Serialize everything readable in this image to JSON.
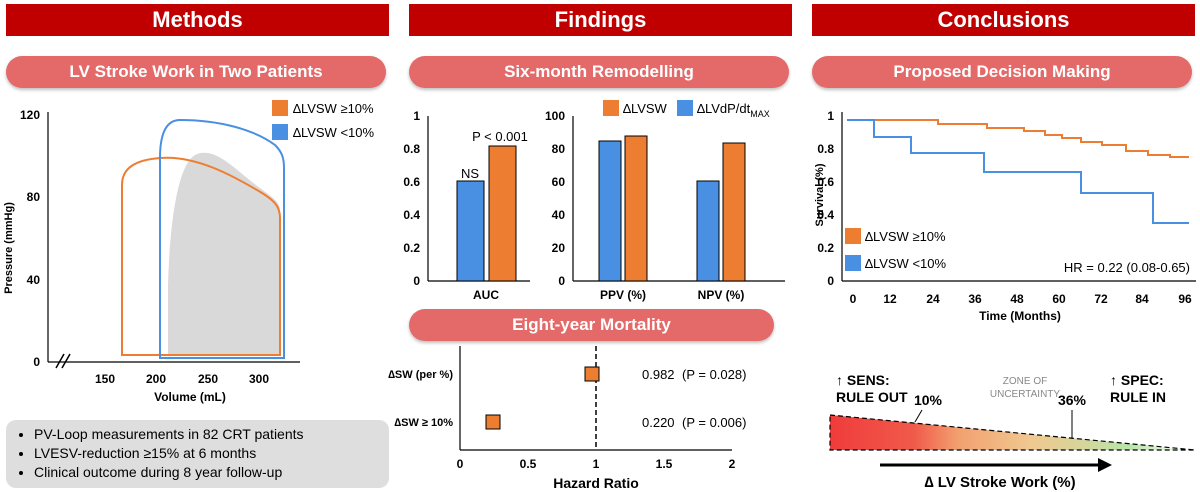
{
  "headers": {
    "methods": "Methods",
    "findings": "Findings",
    "conclusions": "Conclusions"
  },
  "pills": {
    "stroke_work": "LV Stroke Work in Two Patients",
    "remodelling": "Six-month Remodelling",
    "mortality": "Eight-year Mortality",
    "decision": "Proposed Decision Making"
  },
  "legend": {
    "high": "∆LVSW ≥10%",
    "low": "∆LVSW <10%",
    "lvsw": "∆LVSW",
    "dpdt_main": "∆LVdP/dt",
    "dpdt_sub": "MAX"
  },
  "colors": {
    "orange": "#ed7d31",
    "blue": "#4a90e2",
    "grey": "#d9d9d9",
    "red": "#c00000",
    "pill": "#e46a6a"
  },
  "bullets": [
    "PV-Loop measurements in 82 CRT patients",
    "LVESV-reduction ≥15% at 6 months",
    "Clinical outcome during 8 year follow-up"
  ],
  "pv_loop": {
    "ylabel": "Pressure (mmHg)",
    "xlabel": "Volume (mL)",
    "yticks": [
      "120",
      "80",
      "40",
      "0"
    ],
    "xticks": [
      "150",
      "200",
      "250",
      "300"
    ]
  },
  "auc_chart": {
    "xlabel": "AUC",
    "yticks": [
      "1",
      "0.8",
      "0.6",
      "0.4",
      "0.2",
      "0"
    ],
    "ns": "NS",
    "p": "P < 0.001"
  },
  "ppv_chart": {
    "yticks": [
      "100",
      "80",
      "60",
      "40",
      "20",
      "0"
    ],
    "x1": "PPV (%)",
    "x2": "NPV (%)"
  },
  "forest": {
    "row1_label": "∆SW (per %)",
    "row1_value": "0.982",
    "row1_p": "(P = 0.028)",
    "row2_label": "∆SW ≥ 10%",
    "row2_value": "0.220",
    "row2_p": "(P = 0.006)",
    "xticks": [
      "0",
      "0.5",
      "1",
      "1.5",
      "2"
    ],
    "xlabel": "Hazard Ratio"
  },
  "survival": {
    "ylabel": "Survival (%)",
    "xlabel": "Time (Months)",
    "yticks": [
      "1",
      "0.8",
      "0.6",
      "0.4",
      "0.2",
      "0"
    ],
    "xticks": [
      "0",
      "12",
      "24",
      "36",
      "48",
      "60",
      "72",
      "84",
      "96"
    ],
    "hr": "HR = 0.22 (0.08-0.65)"
  },
  "decision": {
    "sens1": "↑ SENS:",
    "sens2": "RULE OUT",
    "spec1": "↑ SPEC:",
    "spec2": "RULE IN",
    "zone1": "ZONE OF",
    "zone2": "UNCERTAINTY",
    "t10": "10%",
    "t36": "36%",
    "axis": "∆ LV Stroke Work (%)"
  },
  "chart_data": [
    {
      "type": "bar",
      "title": "Six-month Remodelling (AUC)",
      "categories": [
        "AUC"
      ],
      "series": [
        {
          "name": "∆LVdP/dtMAX",
          "values": [
            0.59
          ]
        },
        {
          "name": "∆LVSW",
          "values": [
            0.81
          ]
        }
      ],
      "ylim": [
        0,
        1
      ],
      "annotations": [
        "NS",
        "P < 0.001"
      ]
    },
    {
      "type": "bar",
      "title": "Six-month Remodelling (PPV/NPV)",
      "categories": [
        "PPV (%)",
        "NPV (%)"
      ],
      "series": [
        {
          "name": "∆LVdP/dtMAX",
          "values": [
            83,
            58
          ]
        },
        {
          "name": "∆LVSW",
          "values": [
            86,
            82
          ]
        }
      ],
      "ylim": [
        0,
        100
      ]
    },
    {
      "type": "scatter",
      "title": "Eight-year Mortality",
      "xlabel": "Hazard Ratio",
      "xlim": [
        0,
        2
      ],
      "points": [
        {
          "label": "∆SW (per %)",
          "hr": 0.982
        },
        {
          "label": "∆SW ≥ 10%",
          "hr": 0.22
        }
      ]
    },
    {
      "type": "line",
      "title": "Survival",
      "xlabel": "Time (Months)",
      "ylabel": "Survival (%)",
      "xlim": [
        0,
        96
      ],
      "ylim": [
        0,
        1
      ],
      "series": [
        {
          "name": "∆LVSW ≥10%",
          "x": [
            0,
            24,
            36,
            48,
            54,
            60,
            66,
            72,
            78,
            84,
            90,
            96
          ],
          "y": [
            0.95,
            0.93,
            0.91,
            0.89,
            0.87,
            0.86,
            0.84,
            0.83,
            0.8,
            0.78,
            0.76,
            0.74
          ]
        },
        {
          "name": "∆LVSW <10%",
          "x": [
            0,
            6,
            16,
            36,
            63,
            82,
            96
          ],
          "y": [
            0.95,
            0.86,
            0.76,
            0.65,
            0.52,
            0.34,
            0.34
          ]
        }
      ]
    }
  ]
}
